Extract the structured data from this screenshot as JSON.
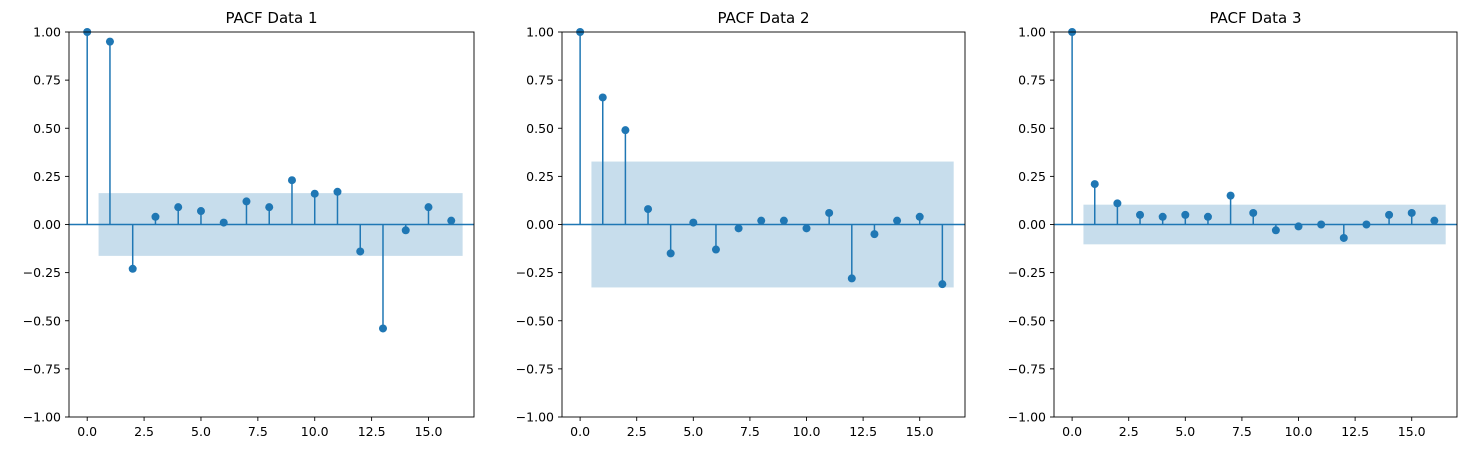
{
  "chart_data": [
    {
      "type": "stem",
      "title": "PACF Data 1",
      "x": [
        0,
        1,
        2,
        3,
        4,
        5,
        6,
        7,
        8,
        9,
        10,
        11,
        12,
        13,
        14,
        15,
        16
      ],
      "values": [
        1.0,
        0.95,
        -0.23,
        0.04,
        0.09,
        0.07,
        0.01,
        0.12,
        0.09,
        0.23,
        0.16,
        0.17,
        -0.14,
        -0.54,
        -0.03,
        0.09,
        0.02
      ],
      "confidence_band": {
        "x_range": [
          0.5,
          16.5
        ],
        "y": 0.163
      },
      "xlim": [
        -0.8,
        17.0
      ],
      "ylim": [
        -1.0,
        1.0
      ],
      "xticks": [
        0.0,
        2.5,
        5.0,
        7.5,
        10.0,
        12.5,
        15.0
      ],
      "xtick_labels": [
        "0.0",
        "2.5",
        "5.0",
        "7.5",
        "10.0",
        "12.5",
        "15.0"
      ],
      "yticks": [
        -1.0,
        -0.75,
        -0.5,
        -0.25,
        0.0,
        0.25,
        0.5,
        0.75,
        1.0
      ],
      "ytick_labels": [
        "−1.00",
        "−0.75",
        "−0.50",
        "−0.25",
        "0.00",
        "0.25",
        "0.50",
        "0.75",
        "1.00"
      ]
    },
    {
      "type": "stem",
      "title": "PACF Data 2",
      "x": [
        0,
        1,
        2,
        3,
        4,
        5,
        6,
        7,
        8,
        9,
        10,
        11,
        12,
        13,
        14,
        15,
        16
      ],
      "values": [
        1.0,
        0.66,
        0.49,
        0.08,
        -0.15,
        0.01,
        -0.13,
        -0.02,
        0.02,
        0.02,
        -0.02,
        0.06,
        -0.28,
        -0.05,
        0.02,
        0.04,
        -0.31
      ],
      "confidence_band": {
        "x_range": [
          0.5,
          16.5
        ],
        "y": 0.327
      },
      "xlim": [
        -0.8,
        17.0
      ],
      "ylim": [
        -1.0,
        1.0
      ],
      "xticks": [
        0.0,
        2.5,
        5.0,
        7.5,
        10.0,
        12.5,
        15.0
      ],
      "xtick_labels": [
        "0.0",
        "2.5",
        "5.0",
        "7.5",
        "10.0",
        "12.5",
        "15.0"
      ],
      "yticks": [
        -1.0,
        -0.75,
        -0.5,
        -0.25,
        0.0,
        0.25,
        0.5,
        0.75,
        1.0
      ],
      "ytick_labels": [
        "−1.00",
        "−0.75",
        "−0.50",
        "−0.25",
        "0.00",
        "0.25",
        "0.50",
        "0.75",
        "1.00"
      ]
    },
    {
      "type": "stem",
      "title": "PACF Data 3",
      "x": [
        0,
        1,
        2,
        3,
        4,
        5,
        6,
        7,
        8,
        9,
        10,
        11,
        12,
        13,
        14,
        15,
        16
      ],
      "values": [
        1.0,
        0.21,
        0.11,
        0.05,
        0.04,
        0.05,
        0.04,
        0.15,
        0.06,
        -0.03,
        -0.01,
        0.0,
        -0.07,
        0.0,
        0.05,
        0.06,
        0.02
      ],
      "confidence_band": {
        "x_range": [
          0.5,
          16.5
        ],
        "y": 0.103
      },
      "xlim": [
        -0.8,
        17.0
      ],
      "ylim": [
        -1.0,
        1.0
      ],
      "xticks": [
        0.0,
        2.5,
        5.0,
        7.5,
        10.0,
        12.5,
        15.0
      ],
      "xtick_labels": [
        "0.0",
        "2.5",
        "5.0",
        "7.5",
        "10.0",
        "12.5",
        "15.0"
      ],
      "yticks": [
        -1.0,
        -0.75,
        -0.5,
        -0.25,
        0.0,
        0.25,
        0.5,
        0.75,
        1.0
      ],
      "ytick_labels": [
        "−1.00",
        "−0.75",
        "−0.50",
        "−0.25",
        "0.00",
        "0.25",
        "0.50",
        "0.75",
        "1.00"
      ]
    }
  ],
  "colors": {
    "stem": "#1f77b4",
    "band": "#1f77b4",
    "axes": "#000000"
  }
}
